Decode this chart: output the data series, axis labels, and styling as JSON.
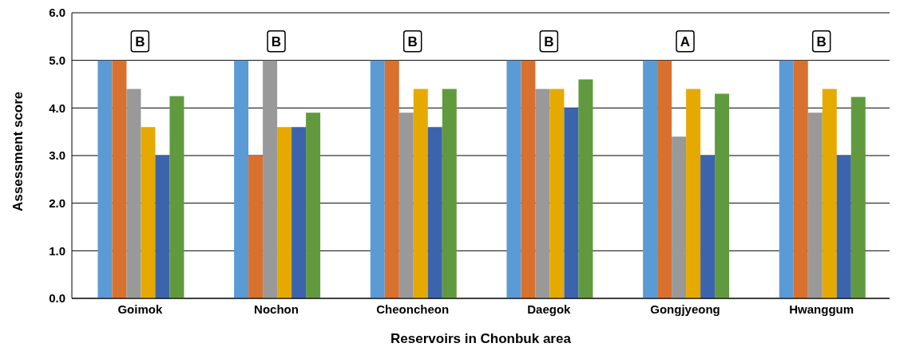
{
  "chart_data": {
    "type": "bar",
    "xlabel": "Reservoirs in Chonbuk  area",
    "ylabel": "Assessment score",
    "categories": [
      "Goimok",
      "Nochon",
      "Cheoncheon",
      "Daegok",
      "Gongjyeong",
      "Hwanggum"
    ],
    "series": [
      {
        "color": "#5b9bd5",
        "values": [
          5.0,
          5.0,
          5.0,
          5.0,
          5.0,
          5.0
        ]
      },
      {
        "color": "#d8702e",
        "values": [
          5.0,
          3.0,
          5.0,
          5.0,
          5.0,
          5.0
        ]
      },
      {
        "color": "#999999",
        "values": [
          4.4,
          5.0,
          3.9,
          4.4,
          3.4,
          3.9
        ]
      },
      {
        "color": "#e5a900",
        "values": [
          3.6,
          3.6,
          4.4,
          4.4,
          4.4,
          4.4
        ]
      },
      {
        "color": "#3b64ad",
        "values": [
          3.0,
          3.6,
          3.6,
          4.0,
          3.0,
          3.0
        ]
      },
      {
        "color": "#619a3e",
        "values": [
          4.25,
          3.9,
          4.4,
          4.6,
          4.3,
          4.23
        ]
      }
    ],
    "ylim": [
      0,
      6
    ],
    "yticks": [
      {
        "value": 0,
        "label": "0.0"
      },
      {
        "value": 1,
        "label": "1.0"
      },
      {
        "value": 2,
        "label": "2.0"
      },
      {
        "value": 3,
        "label": "3.0"
      },
      {
        "value": 4,
        "label": "4.0"
      },
      {
        "value": 5,
        "label": "5.0"
      },
      {
        "value": 6,
        "label": "6.0"
      }
    ],
    "grid": "y",
    "legend": false,
    "annotations": [
      {
        "text": "B",
        "x": "Goimok",
        "y": 5.4
      },
      {
        "text": "B",
        "x": "Nochon",
        "y": 5.4
      },
      {
        "text": "B",
        "x": "Cheoncheon",
        "y": 5.4
      },
      {
        "text": "B",
        "x": "Daegok",
        "y": 5.4
      },
      {
        "text": "A",
        "x": "Gongjyeong",
        "y": 5.4
      },
      {
        "text": "B",
        "x": "Hwanggum",
        "y": 5.4
      }
    ]
  }
}
